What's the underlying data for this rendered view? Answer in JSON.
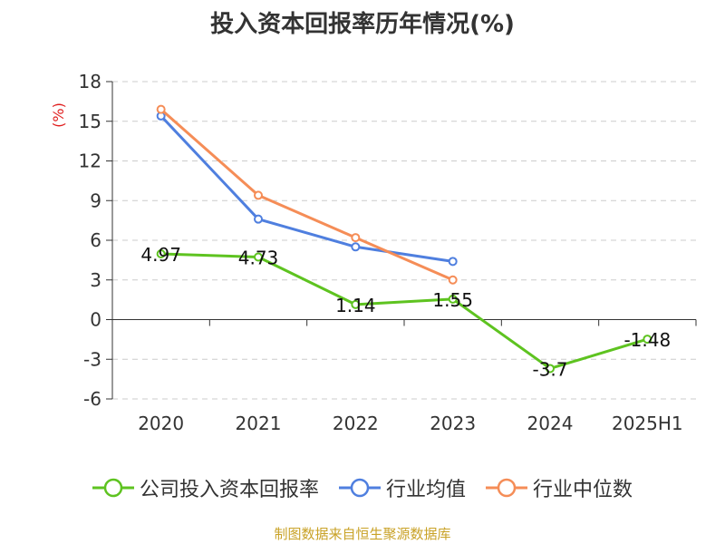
{
  "chart_data": {
    "type": "line",
    "title": "投入资本回报率历年情况(%)",
    "ylabel": "(%)",
    "categories": [
      "2020",
      "2021",
      "2022",
      "2023",
      "2024",
      "2025H1"
    ],
    "ylim": [
      -6,
      18
    ],
    "yticks": [
      -6,
      -3,
      0,
      3,
      6,
      9,
      12,
      15,
      18
    ],
    "grid": true,
    "legend_position": "bottom",
    "series": [
      {
        "name": "公司投入资本回报率",
        "color": "#5ec320",
        "values": [
          4.97,
          4.73,
          1.14,
          1.55,
          -3.7,
          -1.48
        ],
        "labels": [
          "4.97",
          "4.73",
          "1.14",
          "1.55",
          "-3.7",
          "-1.48"
        ]
      },
      {
        "name": "行业均值",
        "color": "#4f7fdf",
        "values": [
          15.4,
          7.6,
          5.5,
          4.4,
          null,
          null
        ]
      },
      {
        "name": "行业中位数",
        "color": "#f58d57",
        "values": [
          15.9,
          9.4,
          6.2,
          3.0,
          null,
          null
        ]
      }
    ]
  },
  "colors": {
    "title": "#333333",
    "ylabel": "#e02020",
    "source": "#c9a227",
    "grid": "#cccccc",
    "axis": "#333333"
  },
  "source_text": "制图数据来自恒生聚源数据库"
}
